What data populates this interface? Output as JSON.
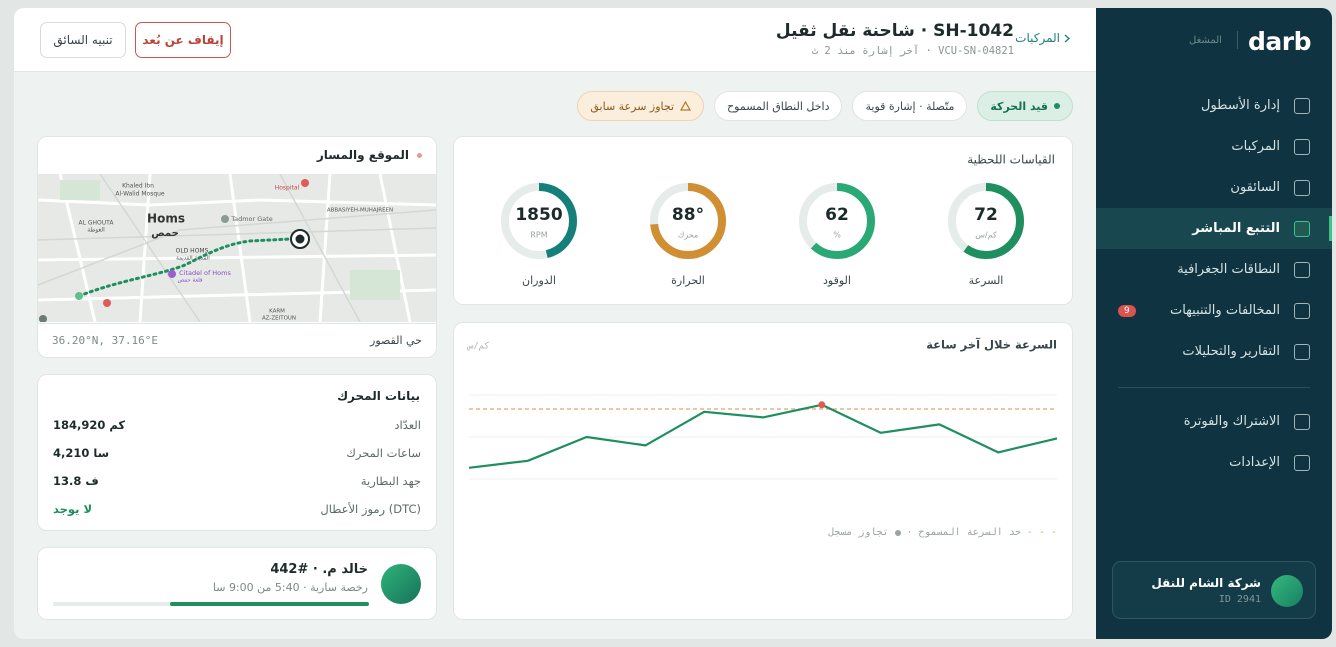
{
  "sidebar": {
    "brand": "darb",
    "role": "المشغل",
    "nav": [
      {
        "label": "إدارة الأسطول"
      },
      {
        "label": "المركبات"
      },
      {
        "label": "السائقون"
      },
      {
        "label": "التتبع المباشر",
        "active": true
      },
      {
        "label": "النطاقات الجغرافية"
      },
      {
        "label": "المخالفات والتنبيهات",
        "badge": 9
      },
      {
        "label": "التقارير والتحليلات"
      },
      {
        "label": "الاشتراك والفوترة"
      },
      {
        "label": "الإعدادات"
      }
    ],
    "company": {
      "name": "شركة الشام للنقل",
      "id": "ID 2941"
    }
  },
  "header": {
    "breadcrumb": "المركبات",
    "title": "SH-1042 · شاحنة نقل ثقيل",
    "subtitle": "VCU-SN-04821 · آخر إشارة منذ 2 ث",
    "buttons": [
      "إيقاف عن بُعد",
      "تنبيه السائق"
    ]
  },
  "status_chips": [
    "قيد الحركة",
    "متّصلة · إشارة قوية",
    "داخل النطاق المسموح",
    "تجاوز سرعة سابق"
  ],
  "map": {
    "title": "الموقع والمسار",
    "place": "حي القصور",
    "coords": "36.20°N, 37.16°E",
    "labels": [
      "Khaled Ibn",
      "Al-Walid Mosque",
      "Hospital",
      "Homs",
      "حمص",
      "AL GHOUTA",
      "الغوطة",
      "Tadmor Gate",
      "ABBASIYEH-MUHAJREEN",
      "OLD HOMS",
      "المدينة القديمة",
      "Citadel of Homs",
      "قلعة حمص",
      "KARM",
      "AZ-ZEITOUN"
    ]
  },
  "engine": {
    "title": "بيانات المحرك",
    "rows": [
      [
        "العدّاد",
        "184,920 كم"
      ],
      [
        "ساعات المحرك",
        "4,210 سا"
      ],
      [
        "جهد البطارية",
        "13.8 ف"
      ],
      [
        "رموز الأعطال (DTC)",
        "لا يوجد"
      ]
    ]
  },
  "driver": {
    "name": "خالد م. · #442",
    "license": "رخصة سارية ·",
    "used": "5:40",
    "of": "من",
    "limit": "9:00",
    "unit": "سا"
  },
  "chart_data": [
    {
      "type": "gauge",
      "title": "القياسات اللحظية",
      "gauges": [
        {
          "label": "السرعة",
          "value": 72,
          "unit": "كم/س",
          "lim": [
            0,
            120
          ],
          "color": "#1f8f5f"
        },
        {
          "label": "الوقود",
          "value": 62,
          "unit": "%",
          "lim": [
            0,
            100
          ],
          "color": "#2aa876"
        },
        {
          "label": "الحرارة",
          "value": 88,
          "value_label": "88°",
          "unit": "محرك",
          "lim": [
            0,
            120
          ],
          "color": "#cf8f32"
        },
        {
          "label": "الدوران",
          "value": 1850,
          "unit": "RPM",
          "lim": [
            0,
            4000
          ],
          "color": "#15807a"
        }
      ]
    },
    {
      "type": "line",
      "title": "السرعة خلال آخر ساعة",
      "y_label": "كم/س",
      "ylim": [
        0,
        120
      ],
      "yticks": [
        30,
        60,
        90
      ],
      "grid": true,
      "series": [
        {
          "color": "#1f8f5f",
          "values": [
            38,
            43,
            60,
            54,
            78,
            74,
            83,
            63,
            69,
            49,
            59
          ]
        }
      ],
      "limit": {
        "value": 80,
        "label": "حد السرعة المسموح",
        "color": "#e9a06f"
      },
      "overspeed": {
        "label": "تجاوز مسجل",
        "color": "#e05a4f"
      }
    }
  ]
}
